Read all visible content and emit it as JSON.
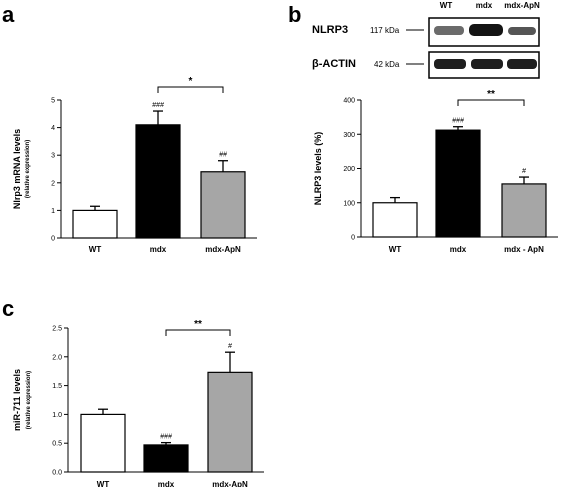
{
  "panels": {
    "a": "a",
    "b": "b",
    "c": "c"
  },
  "blot": {
    "lanes": [
      "WT",
      "mdx",
      "mdx-ApN"
    ],
    "rows": [
      {
        "label": "NLRP3",
        "kda": "117 kDa"
      },
      {
        "label": "β-ACTIN",
        "kda": "42 kDa"
      }
    ]
  },
  "chart_data": [
    {
      "panel": "a",
      "type": "bar",
      "categories": [
        "WT",
        "mdx",
        "mdx-ApN"
      ],
      "values": [
        1.0,
        4.1,
        2.4
      ],
      "errors": [
        0.15,
        0.5,
        0.4
      ],
      "colors": [
        "#ffffff",
        "#000000",
        "#a6a6a6"
      ],
      "ylabel": "Nlrp3 mRNA levels",
      "ylabel_sub": "(relative expression)",
      "ylim": [
        0,
        5
      ],
      "yticks": [
        "0",
        "1",
        "2",
        "3",
        "4",
        "5"
      ],
      "bar_annotations": [
        "",
        "###",
        "##"
      ],
      "comparison": {
        "from": 1,
        "to": 2,
        "label": "*"
      }
    },
    {
      "panel": "b",
      "type": "bar",
      "categories": [
        "WT",
        "mdx",
        "mdx - ApN"
      ],
      "values": [
        100,
        312,
        155
      ],
      "errors": [
        15,
        10,
        20
      ],
      "colors": [
        "#ffffff",
        "#000000",
        "#a6a6a6"
      ],
      "ylabel": "NLRP3 levels (%)",
      "ylabel_sub": "",
      "ylim": [
        0,
        400
      ],
      "yticks": [
        "0",
        "100",
        "200",
        "300",
        "400"
      ],
      "bar_annotations": [
        "",
        "###",
        "#"
      ],
      "comparison": {
        "from": 1,
        "to": 2,
        "label": "**"
      }
    },
    {
      "panel": "c",
      "type": "bar",
      "categories": [
        "WT",
        "mdx",
        "mdx-ApN"
      ],
      "values": [
        1.0,
        0.47,
        1.73
      ],
      "errors": [
        0.09,
        0.04,
        0.35
      ],
      "colors": [
        "#ffffff",
        "#000000",
        "#a6a6a6"
      ],
      "ylabel": "miR-711 levels",
      "ylabel_sub": "(relative expression)",
      "ylim": [
        0,
        2.5
      ],
      "yticks": [
        "0.0",
        "0.5",
        "1.0",
        "1.5",
        "2.0",
        "2.5"
      ],
      "bar_annotations": [
        "",
        "###",
        "#"
      ],
      "comparison": {
        "from": 1,
        "to": 2,
        "label": "**"
      }
    }
  ]
}
